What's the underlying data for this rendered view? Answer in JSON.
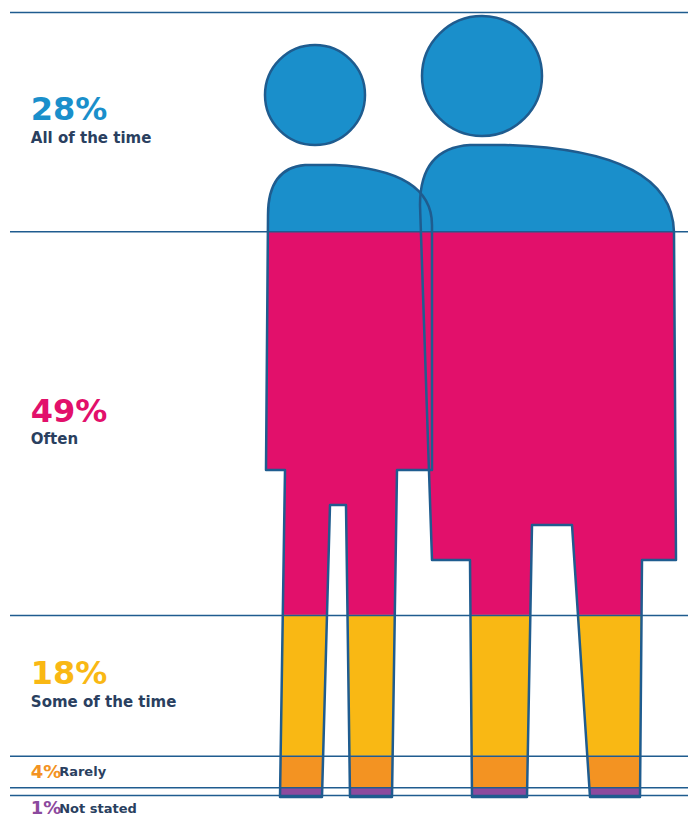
{
  "chart_data": {
    "type": "bar",
    "stacked": true,
    "data_labels": true,
    "tick_labels": false,
    "categories": [
      "All of the time",
      "Often",
      "Some of the time",
      "Rarely",
      "Not stated"
    ],
    "values": [
      28,
      49,
      18,
      4,
      1
    ],
    "value_labels": [
      "28%",
      "49%",
      "18%",
      "4%",
      "1%"
    ],
    "colors": [
      "#1a8fcb",
      "#e2106b",
      "#f9b814",
      "#f39322",
      "#8c4a9e"
    ],
    "ylim": [
      0,
      100
    ]
  }
}
